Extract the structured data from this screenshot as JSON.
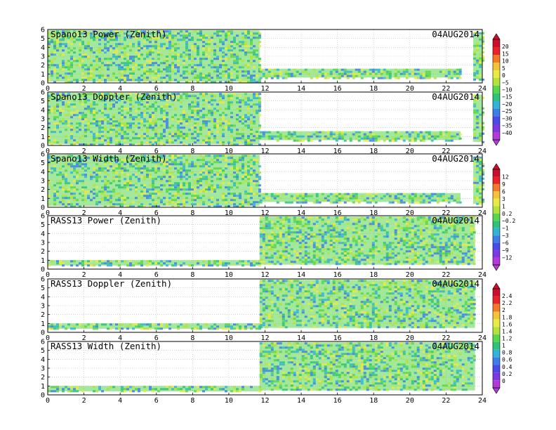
{
  "figure": {
    "date": "04AUG2014",
    "x_tick_labels": [
      "0",
      "2",
      "4",
      "6",
      "8",
      "10",
      "12",
      "14",
      "16",
      "18",
      "20",
      "22",
      "24"
    ],
    "y_tick_labels": [
      "0",
      "1",
      "2",
      "3",
      "4",
      "5",
      "6"
    ]
  },
  "chart_data": [
    {
      "type": "heatmap",
      "title": "Spano13 Power (Zenith)",
      "annotation": "04AUG2014",
      "xlim": [
        0,
        24
      ],
      "ylim": [
        0,
        6
      ],
      "coverage": [
        [
          0,
          11.7,
          0.15,
          5.9
        ],
        [
          11.7,
          22.8,
          0.6,
          1.6
        ],
        [
          23.5,
          24,
          0.4,
          5.7
        ]
      ],
      "colorbar_id": "power_cb"
    },
    {
      "type": "heatmap",
      "title": "Spano13 Doppler (Zenith)",
      "annotation": "04AUG2014",
      "xlim": [
        0,
        24
      ],
      "ylim": [
        0,
        6
      ],
      "coverage": [
        [
          0,
          11.7,
          0.15,
          5.9
        ],
        [
          11.7,
          22.8,
          0.6,
          1.6
        ],
        [
          23.5,
          24,
          0.4,
          5.7
        ]
      ],
      "colorbar_id": "power_cb"
    },
    {
      "type": "heatmap",
      "title": "Spano13 Width (Zenith)",
      "annotation": "04AUG2014",
      "xlim": [
        0,
        24
      ],
      "ylim": [
        0,
        6
      ],
      "coverage": [
        [
          0,
          11.7,
          0.15,
          5.9
        ],
        [
          11.7,
          22.8,
          0.6,
          1.6
        ],
        [
          23.5,
          24,
          0.4,
          5.7
        ]
      ],
      "colorbar_id": "width_cb"
    },
    {
      "type": "heatmap",
      "title": "RASS13 Power (Zenith)",
      "annotation": "04AUG2014",
      "xlim": [
        0,
        24
      ],
      "ylim": [
        0,
        6
      ],
      "coverage": [
        [
          0,
          11.7,
          0.4,
          1.0
        ],
        [
          11.7,
          23.6,
          0.5,
          5.9
        ]
      ],
      "colorbar_id": "width_cb"
    },
    {
      "type": "heatmap",
      "title": "RASS13 Doppler (Zenith)",
      "annotation": "04AUG2014",
      "xlim": [
        0,
        24
      ],
      "ylim": [
        0,
        6
      ],
      "coverage": [
        [
          0,
          11.7,
          0.4,
          1.0
        ],
        [
          11.7,
          23.6,
          0.5,
          5.9
        ]
      ],
      "colorbar_id": "rass_cb"
    },
    {
      "type": "heatmap",
      "title": "RASS13 Width (Zenith)",
      "annotation": "04AUG2014",
      "xlim": [
        0,
        24
      ],
      "ylim": [
        0,
        6
      ],
      "coverage": [
        [
          0,
          11.7,
          0.4,
          1.0
        ],
        [
          11.7,
          23.6,
          0.5,
          5.9
        ]
      ],
      "colorbar_id": "rass_cb"
    }
  ],
  "colorbars": {
    "power_cb": {
      "labels": [
        "20",
        "15",
        "10",
        "5",
        "0",
        "−5",
        "−10",
        "−15",
        "−20",
        "−25",
        "−30",
        "−35",
        "−40"
      ],
      "colors": [
        "#c8102e",
        "#e8242a",
        "#f07a2a",
        "#f2c43a",
        "#eaea44",
        "#b4e23c",
        "#5ad64a",
        "#2ec27a",
        "#33b3d6",
        "#3d7fe8",
        "#4a4ae8",
        "#7d38e0",
        "#b43ad8"
      ]
    },
    "width_cb": {
      "labels": [
        "12",
        "9",
        "6",
        "3",
        "1",
        "0.2",
        "−0.2",
        "−1",
        "−3",
        "−6",
        "−9",
        "−12"
      ],
      "colors": [
        "#c8102e",
        "#e8242a",
        "#f07a2a",
        "#f2c43a",
        "#eaea44",
        "#b4e23c",
        "#5ad64a",
        "#2ec27a",
        "#33b3d6",
        "#3d7fe8",
        "#4a4ae8",
        "#7d38e0",
        "#b43ad8"
      ]
    },
    "rass_cb": {
      "labels": [
        "2.4",
        "2.2",
        "2",
        "1.8",
        "1.6",
        "1.4",
        "1.2",
        "1",
        "0.8",
        "0.6",
        "0.4",
        "0.2",
        "0"
      ],
      "colors": [
        "#c8102e",
        "#e8242a",
        "#f07a2a",
        "#f2c43a",
        "#eaea44",
        "#b4e23c",
        "#5ad64a",
        "#2ec27a",
        "#33b3d6",
        "#3d7fe8",
        "#4a4ae8",
        "#7d38e0",
        "#b43ad8"
      ]
    }
  }
}
